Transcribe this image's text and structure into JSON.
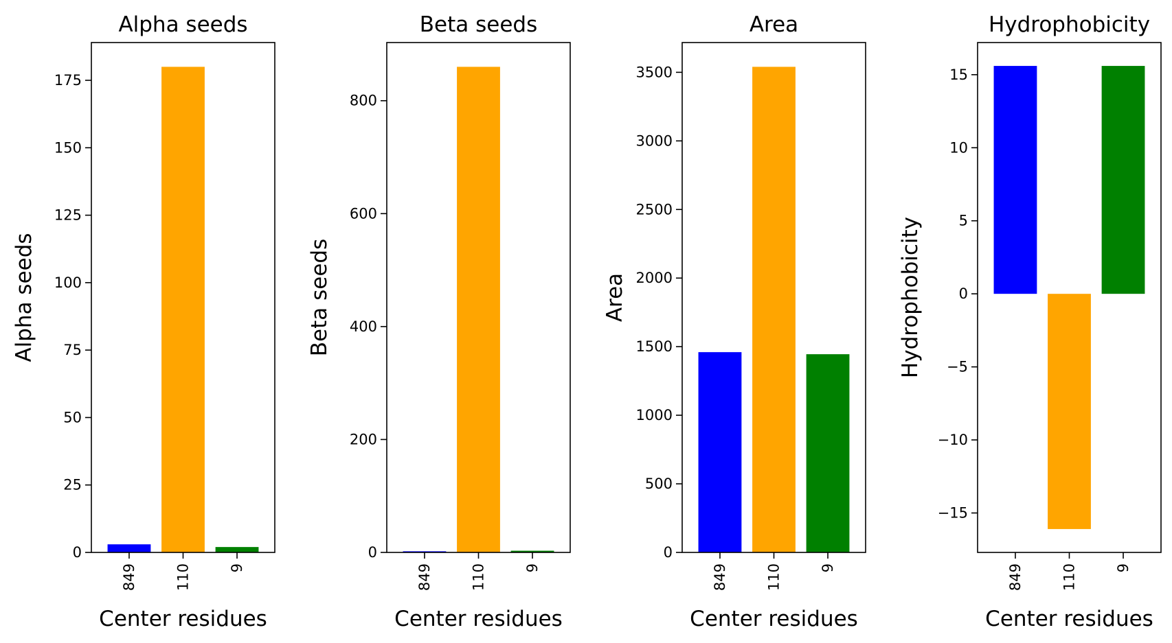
{
  "colors": {
    "series_colors": [
      "#0000ff",
      "#ffa500",
      "#008000"
    ]
  },
  "chart_data": [
    {
      "type": "bar",
      "title": "Alpha seeds",
      "xlabel": "Center residues",
      "ylabel": "Alpha seeds",
      "categories": [
        "849",
        "110",
        "9"
      ],
      "values": [
        3,
        180,
        2
      ],
      "ylim": [
        0,
        189
      ],
      "yticks": [
        0,
        25,
        50,
        75,
        100,
        125,
        150,
        175
      ],
      "ytick_labels": [
        "0",
        "25",
        "50",
        "75",
        "100",
        "125",
        "150",
        "175"
      ]
    },
    {
      "type": "bar",
      "title": "Beta seeds",
      "xlabel": "Center residues",
      "ylabel": "Beta seeds",
      "categories": [
        "849",
        "110",
        "9"
      ],
      "values": [
        2,
        860,
        3
      ],
      "ylim": [
        0,
        903
      ],
      "yticks": [
        0,
        200,
        400,
        600,
        800
      ],
      "ytick_labels": [
        "0",
        "200",
        "400",
        "600",
        "800"
      ]
    },
    {
      "type": "bar",
      "title": "Area",
      "xlabel": "Center residues",
      "ylabel": "Area",
      "categories": [
        "849",
        "110",
        "9"
      ],
      "values": [
        1460,
        3540,
        1445
      ],
      "ylim": [
        0,
        3717
      ],
      "yticks": [
        0,
        500,
        1000,
        1500,
        2000,
        2500,
        3000,
        3500
      ],
      "ytick_labels": [
        "0",
        "500",
        "1000",
        "1500",
        "2000",
        "2500",
        "3000",
        "3500"
      ]
    },
    {
      "type": "bar",
      "title": "Hydrophobicity",
      "xlabel": "Center residues",
      "ylabel": "Hydrophobicity",
      "categories": [
        "849",
        "110",
        "9"
      ],
      "values": [
        15.6,
        -16.1,
        15.6
      ],
      "ylim": [
        -17.7,
        17.2
      ],
      "yticks": [
        -15,
        -10,
        -5,
        0,
        5,
        10,
        15
      ],
      "ytick_labels": [
        "−15",
        "−10",
        "−5",
        "0",
        "5",
        "10",
        "15"
      ]
    }
  ]
}
